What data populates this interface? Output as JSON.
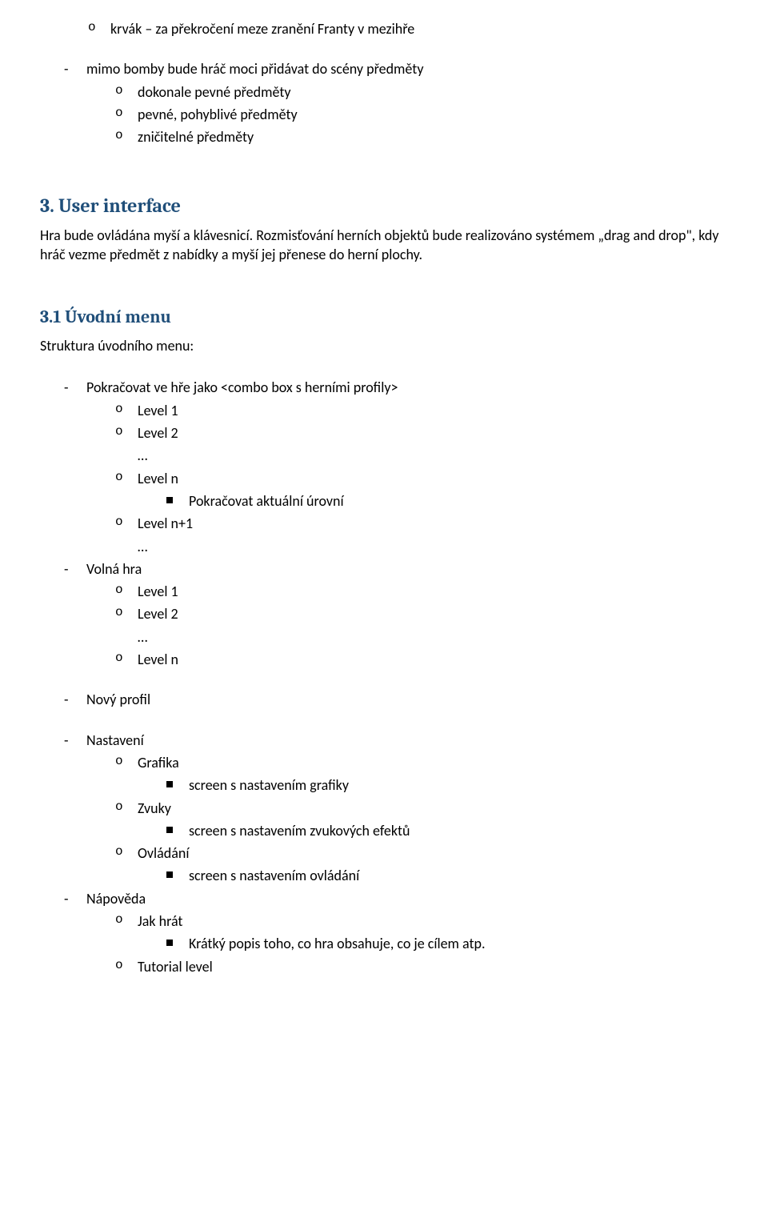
{
  "top": {
    "item0": "krvák – za překročení meze zranění Franty v mezihře",
    "dash0": "mimo bomby bude hráč moci přidávat do scény předměty",
    "sub0": "dokonale pevné předměty",
    "sub1": "pevné, pohyblivé předměty",
    "sub2": "zničitelné předměty"
  },
  "h3": "3. User interface",
  "p3": "Hra bude ovládána myší a klávesnicí. Rozmisťování herních objektů bude realizováno systémem „drag and drop\", kdy hráč vezme předmět z nabídky a myší jej přenese do herní plochy.",
  "h31": "3.1 Úvodní menu",
  "p31": "Struktura úvodního menu:",
  "menu": {
    "pokracovat": "Pokračovat ve hře jako  <combo box s herními profily>",
    "level1": "Level 1",
    "level2": "Level 2",
    "ellipsis": "…",
    "leveln": "Level n",
    "pokr_actual": "Pokračovat aktuální úrovní",
    "leveln1": "Level n+1",
    "volna": "Volná hra",
    "v_level1": "Level 1",
    "v_level2": "Level 2",
    "v_leveln": "Level n",
    "novy": "Nový profil",
    "nastaveni": "Nastavení",
    "grafika": "Grafika",
    "grafika_sub": "screen s nastavením grafiky",
    "zvuky": "Zvuky",
    "zvuky_sub": "screen s nastavením zvukových efektů",
    "ovladani": "Ovládání",
    "ovladani_sub": "screen s nastavením ovládání",
    "napoveda": "Nápověda",
    "jakhrat": "Jak hrát",
    "jakhrat_sub": "Krátký popis toho, co hra obsahuje, co je cílem atp.",
    "tutorial": "Tutorial level"
  }
}
